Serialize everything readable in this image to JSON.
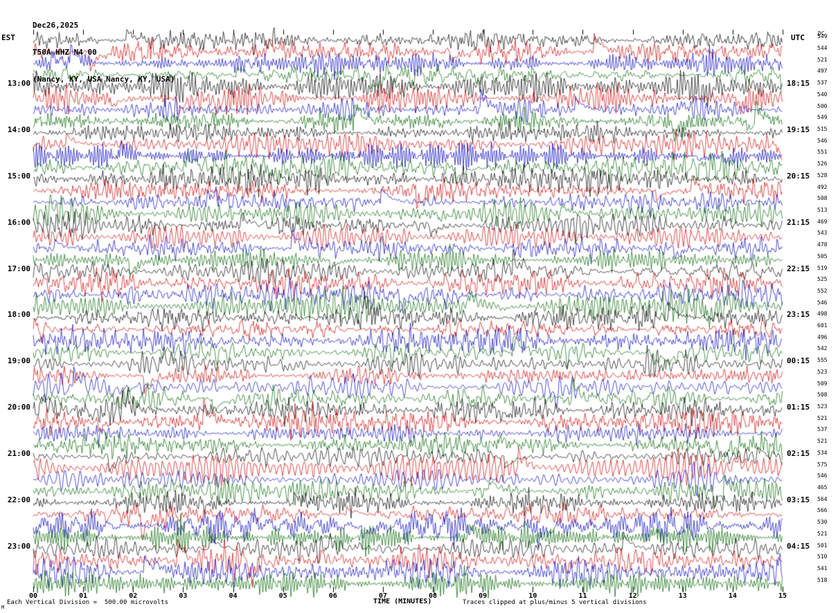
{
  "title": {
    "line1": "Dec26,2025",
    "line2": "T50A HHZ N4 00",
    "line3": "(Nancy, KY, USA Nancy, KY, USA)"
  },
  "axis": {
    "left_timezone": "EST",
    "right_timezone": "UTC",
    "dc_header": "DC",
    "x_axis_label": "TIME (MINUTES)",
    "x_tick_labels": [
      "00",
      "01",
      "02",
      "03",
      "04",
      "05",
      "06",
      "07",
      "08",
      "09",
      "10",
      "11",
      "12",
      "13",
      "14",
      "15"
    ]
  },
  "footer": {
    "left_note": "Each Vertical Division =  500.00 microvolts",
    "right_note": "Traces clipped at plus/minus 5 vertical divisions",
    "corner_mark": "M"
  },
  "chart_data": {
    "type": "line",
    "subtype": "helicorder-seismogram",
    "station": "T50A",
    "channel": "HHZ",
    "network": "N4",
    "location_code": "00",
    "station_name": "Nancy, KY, USA",
    "date": "Dec26,2025",
    "rows": 48,
    "minutes_per_row": 15,
    "first_row_start_est": "12:00",
    "x_range_minutes": [
      0,
      15
    ],
    "clip_divisions": 5,
    "microvolts_per_division": 500.0,
    "trace_color_cycle": [
      "#000000",
      "#cc0000",
      "#0000bb",
      "#006600"
    ],
    "left_time_labels": [
      {
        "row": 4,
        "text": "13:00"
      },
      {
        "row": 8,
        "text": "14:00"
      },
      {
        "row": 12,
        "text": "15:00"
      },
      {
        "row": 16,
        "text": "16:00"
      },
      {
        "row": 20,
        "text": "17:00"
      },
      {
        "row": 24,
        "text": "18:00"
      },
      {
        "row": 28,
        "text": "19:00"
      },
      {
        "row": 32,
        "text": "20:00"
      },
      {
        "row": 36,
        "text": "21:00"
      },
      {
        "row": 40,
        "text": "22:00"
      },
      {
        "row": 44,
        "text": "23:00"
      }
    ],
    "right_time_labels": [
      {
        "row": 4,
        "text": "18:15"
      },
      {
        "row": 8,
        "text": "19:15"
      },
      {
        "row": 12,
        "text": "20:15"
      },
      {
        "row": 16,
        "text": "21:15"
      },
      {
        "row": 20,
        "text": "22:15"
      },
      {
        "row": 24,
        "text": "23:15"
      },
      {
        "row": 28,
        "text": "00:15"
      },
      {
        "row": 32,
        "text": "01:15"
      },
      {
        "row": 36,
        "text": "02:15"
      },
      {
        "row": 40,
        "text": "03:15"
      },
      {
        "row": 44,
        "text": "04:15"
      }
    ],
    "dc_values": [
      549,
      544,
      521,
      497,
      537,
      540,
      500,
      549,
      515,
      546,
      551,
      526,
      528,
      492,
      508,
      513,
      469,
      543,
      478,
      505,
      519,
      525,
      552,
      546,
      498,
      601,
      496,
      542,
      555,
      523,
      509,
      508,
      523,
      521,
      537,
      521,
      534,
      575,
      546,
      465,
      564,
      566,
      530,
      521,
      501,
      510,
      541,
      518
    ],
    "render_seed": 1226
  }
}
